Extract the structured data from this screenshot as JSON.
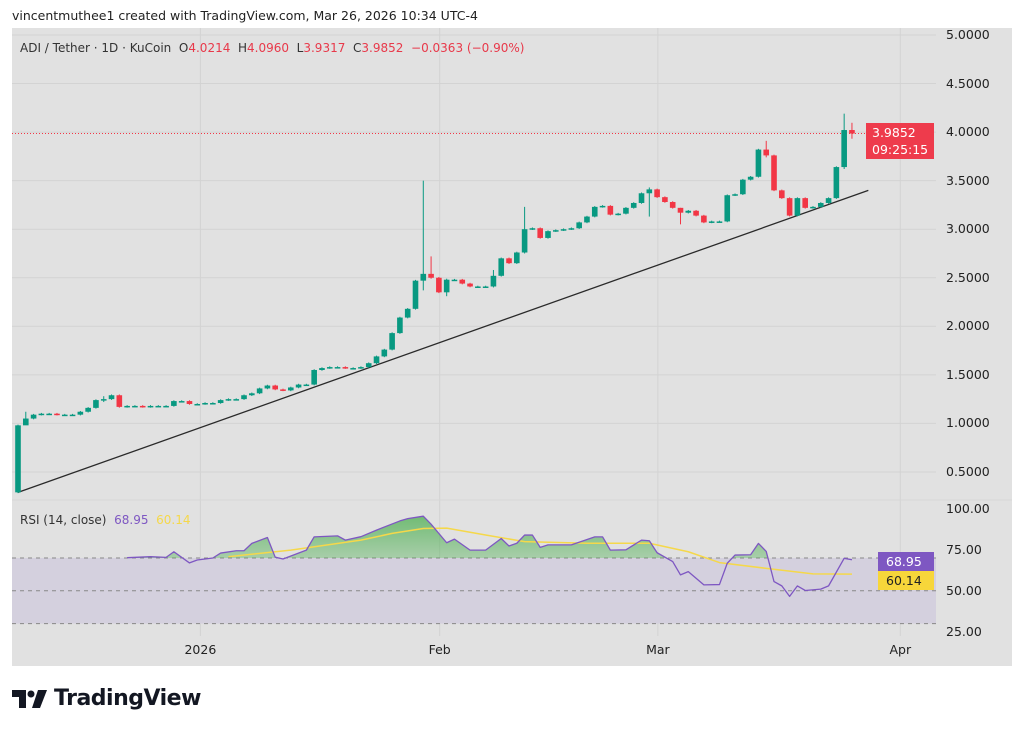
{
  "credit": "vincentmuthee1 created with TradingView.com, Mar 26, 2026 10:34 UTC-4",
  "legend": {
    "symbol": "ADI / Tether · 1D · KuCoin",
    "open_label": "O",
    "open": "4.0214",
    "high_label": "H",
    "high": "4.0960",
    "low_label": "L",
    "low": "3.9317",
    "close_label": "C",
    "close": "3.9852",
    "change": "−0.0363 (−0.90%)"
  },
  "rsi_legend": {
    "label": "RSI (14, close)",
    "rsi": "68.95",
    "ma": "60.14"
  },
  "price_tag": {
    "price": "3.9852",
    "countdown": "09:25:15"
  },
  "rsi_tags": {
    "rsi": "68.95",
    "ma": "60.14"
  },
  "brand": "TradingView",
  "colors": {
    "up": "#089981",
    "down": "#f23645",
    "rsi": "#7e57c2",
    "rsi_ma": "#f5d84a",
    "price_tag": "#ee3b4c",
    "background": "#e1e1e1"
  },
  "chart_data": {
    "type": "candlestick",
    "price_axis": {
      "ticks": [
        "5.0000",
        "4.5000",
        "4.0000",
        "3.5000",
        "3.0000",
        "2.5000",
        "2.0000",
        "1.5000",
        "1.0000",
        "0.5000"
      ],
      "range": [
        0.5,
        5.0
      ]
    },
    "time_axis": {
      "ticks": [
        {
          "label": "2026",
          "bar": 23.4
        },
        {
          "label": "Feb",
          "bar": 54.1
        },
        {
          "label": "Mar",
          "bar": 82.1
        },
        {
          "label": "Apr",
          "bar": 113.2
        }
      ]
    },
    "first_open": 0.29,
    "closes": [
      0.98,
      1.05,
      1.09,
      1.1,
      1.1,
      1.09,
      1.09,
      1.09,
      1.12,
      1.16,
      1.24,
      1.25,
      1.29,
      1.17,
      1.18,
      1.18,
      1.17,
      1.18,
      1.18,
      1.18,
      1.23,
      1.23,
      1.2,
      1.2,
      1.21,
      1.21,
      1.24,
      1.25,
      1.25,
      1.29,
      1.31,
      1.36,
      1.39,
      1.35,
      1.34,
      1.37,
      1.4,
      1.4,
      1.55,
      1.57,
      1.58,
      1.58,
      1.57,
      1.57,
      1.58,
      1.62,
      1.69,
      1.76,
      1.93,
      2.09,
      2.18,
      2.47,
      2.54,
      2.5,
      2.35,
      2.48,
      2.48,
      2.44,
      2.41,
      2.41,
      2.41,
      2.52,
      2.7,
      2.65,
      2.76,
      3.0,
      3.01,
      2.91,
      2.98,
      2.99,
      3.0,
      3.01,
      3.07,
      3.13,
      3.23,
      3.24,
      3.15,
      3.16,
      3.22,
      3.27,
      3.37,
      3.41,
      3.33,
      3.28,
      3.22,
      3.17,
      3.19,
      3.14,
      3.07,
      3.08,
      3.08,
      3.35,
      3.36,
      3.51,
      3.54,
      3.82,
      3.76,
      3.4,
      3.32,
      3.14,
      3.32,
      3.22,
      3.23,
      3.27,
      3.32,
      3.64,
      4.0214,
      3.9852
    ],
    "high_low": {
      "1": [
        1.12,
        1.03
      ],
      "11": [
        1.28,
        1.22
      ],
      "52": [
        3.5,
        2.37
      ],
      "53": [
        2.72,
        2.49
      ],
      "55": [
        2.49,
        2.31
      ],
      "61": [
        2.58,
        2.4
      ],
      "65": [
        3.23,
        2.75
      ],
      "81": [
        3.43,
        3.13
      ],
      "85": [
        3.22,
        3.05
      ],
      "96": [
        3.91,
        3.74
      ],
      "106": [
        4.19,
        3.62
      ],
      "107": [
        4.096,
        3.9317
      ]
    },
    "last_price": 3.9852,
    "trendline": [
      {
        "bar": 0,
        "price": 0.29
      },
      {
        "bar": 109.1,
        "price": 3.4
      }
    ],
    "rsi": {
      "axis_ticks": [
        "100.00",
        "75.00",
        "50.00",
        "25.00"
      ],
      "bands": [
        30,
        50,
        70
      ],
      "values": [
        [
          14,
          70.2
        ],
        [
          17,
          70.8
        ],
        [
          19,
          70.4
        ],
        [
          20,
          73.8
        ],
        [
          22,
          67
        ],
        [
          23,
          68.8
        ],
        [
          25,
          70
        ],
        [
          26,
          73
        ],
        [
          28,
          74.4
        ],
        [
          29,
          74.4
        ],
        [
          30,
          78.9
        ],
        [
          32,
          82.5
        ],
        [
          33,
          70.5
        ],
        [
          34,
          69.4
        ],
        [
          37,
          74.8
        ],
        [
          38,
          82.9
        ],
        [
          41,
          83.5
        ],
        [
          42,
          80.9
        ],
        [
          44,
          83
        ],
        [
          46,
          87
        ],
        [
          49,
          92.6
        ],
        [
          50,
          94
        ],
        [
          52,
          95.5
        ],
        [
          53,
          90.6
        ],
        [
          55,
          79.3
        ],
        [
          56,
          81.5
        ],
        [
          58,
          74.8
        ],
        [
          60,
          74.8
        ],
        [
          62,
          81.9
        ],
        [
          63,
          77.3
        ],
        [
          64,
          79
        ],
        [
          65,
          84
        ],
        [
          66,
          84
        ],
        [
          67,
          76.5
        ],
        [
          68,
          78
        ],
        [
          71,
          78
        ],
        [
          74,
          82.9
        ],
        [
          75,
          82.9
        ],
        [
          76,
          74.8
        ],
        [
          78,
          75
        ],
        [
          80,
          80.9
        ],
        [
          81,
          80.5
        ],
        [
          82,
          73.2
        ],
        [
          84,
          67.8
        ],
        [
          85,
          59.7
        ],
        [
          86,
          61.7
        ],
        [
          88,
          53.6
        ],
        [
          90,
          53.8
        ],
        [
          91,
          66.8
        ],
        [
          92,
          71.8
        ],
        [
          94,
          72
        ],
        [
          95,
          78.9
        ],
        [
          96,
          74
        ],
        [
          97,
          55.6
        ],
        [
          98,
          53
        ],
        [
          99,
          46.6
        ],
        [
          100,
          53
        ],
        [
          101,
          50.2
        ],
        [
          103,
          51
        ],
        [
          104,
          53
        ],
        [
          106,
          69.8
        ],
        [
          107,
          68.95
        ]
      ],
      "ma": [
        [
          27,
          70.8
        ],
        [
          35,
          74.8
        ],
        [
          44,
          80.9
        ],
        [
          48,
          85
        ],
        [
          52,
          88
        ],
        [
          55,
          88.2
        ],
        [
          60,
          84
        ],
        [
          65,
          80
        ],
        [
          73,
          79
        ],
        [
          81,
          79
        ],
        [
          86,
          73.8
        ],
        [
          90,
          67.2
        ],
        [
          96,
          63.7
        ],
        [
          102,
          60.3
        ],
        [
          107,
          60.14
        ]
      ]
    }
  }
}
